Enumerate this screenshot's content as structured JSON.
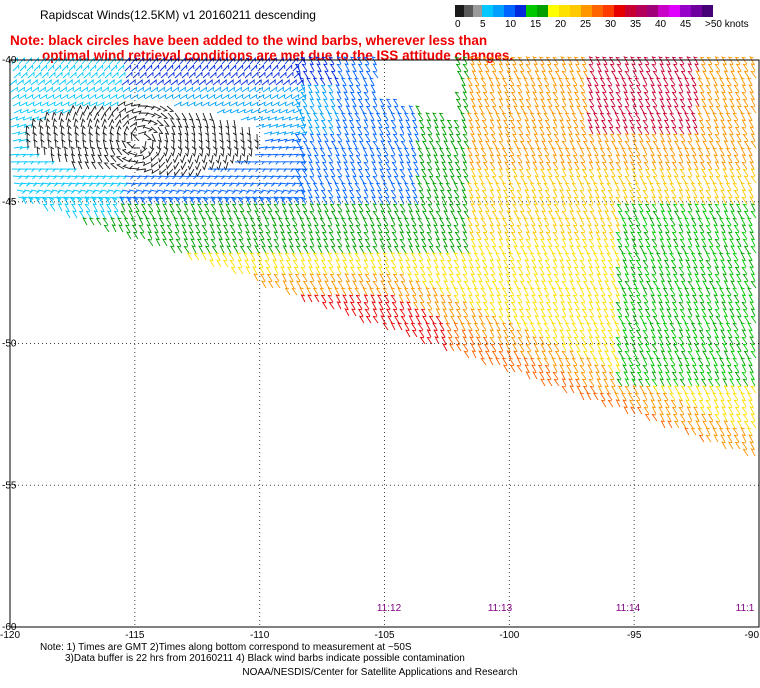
{
  "title": "Rapidscat Winds(12.5KM) v1 20160211 descending",
  "note": {
    "line1": "Note: black circles have been added to the wind barbs, wherever less than",
    "line2": "optimal wind retrieval conditions are met due to the ISS attitude changes."
  },
  "legend": {
    "labels": [
      "0",
      "5",
      "10",
      "15",
      "20",
      "25",
      "30",
      "35",
      "40",
      "45",
      ">50 knots"
    ],
    "colors": [
      "#1a1a1a",
      "#5a5a5a",
      "#9a9a9a",
      "#00c8ff",
      "#00a0ff",
      "#0064ff",
      "#0028dc",
      "#00c800",
      "#00a000",
      "#ffff00",
      "#ffe100",
      "#ffc800",
      "#ff9600",
      "#ff6400",
      "#ff3c00",
      "#e60000",
      "#c80032",
      "#b4005a",
      "#a00078",
      "#c800c8",
      "#e100ff",
      "#9600c8",
      "#6e00a0",
      "#460078"
    ]
  },
  "axes": {
    "lat_labels": [
      "-40",
      "-45",
      "-50",
      "-55",
      "-60"
    ],
    "lon_labels": [
      "-120",
      "-115",
      "-110",
      "-105",
      "-100",
      "-95",
      "-90"
    ],
    "times": [
      "11:12",
      "11:13",
      "11:14",
      "11:1"
    ]
  },
  "footnote": {
    "line1": "Note: 1) Times are GMT 2)Times along bottom correspond to measurement at ~50S",
    "line2": "3)Data buffer is 22 hrs from 20160211 4) Black wind barbs indicate possible contamination"
  },
  "credit": "NOAA/NESDIS/Center for Satellite Applications and Research"
}
